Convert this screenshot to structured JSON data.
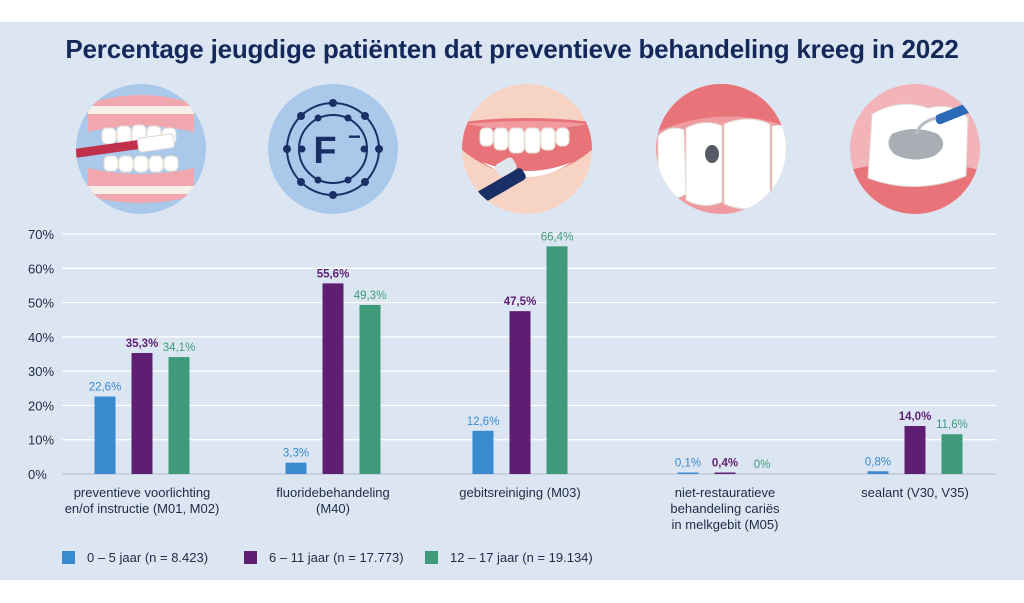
{
  "title": "Percentage jeugdige patiënten dat preventieve behandeling kreeg in 2022",
  "icons": [
    "toothbrush-teeth-icon",
    "fluoride-atom-icon",
    "teeth-cleaning-icon",
    "caries-tooth-icon",
    "sealant-tooth-icon"
  ],
  "colors": {
    "background": "#dce6f3",
    "title": "#14285a",
    "blue": "#3a8ad0",
    "purple": "#5e1f72",
    "green": "#3f9a7a"
  },
  "chart_data": {
    "type": "bar",
    "title": "Percentage jeugdige patiënten dat preventieve behandeling kreeg in 2022",
    "ylim": [
      0,
      70
    ],
    "yticks": [
      "0%",
      "10%",
      "20%",
      "30%",
      "40%",
      "50%",
      "60%",
      "70%"
    ],
    "grid": true,
    "legend_position": "bottom",
    "categories": [
      "preventieve voorlichting\nen/of instructie (M01, M02)",
      "fluoridebehandeling\n(M40)",
      "gebitsreiniging (M03)",
      "niet-restauratieve\nbehandeling cariës\nin melkgebit (M05)",
      "sealant (V30, V35)"
    ],
    "series": [
      {
        "name": "0 – 5 jaar (n = 8.423)",
        "color": "#3a8ad0",
        "values": [
          22.6,
          3.3,
          12.6,
          0.1,
          0.8
        ],
        "labels": [
          "22,6%",
          "3,3%",
          "12,6%",
          "0,1%",
          "0,8%"
        ]
      },
      {
        "name": "6 – 11 jaar (n = 17.773)",
        "color": "#5e1f72",
        "values": [
          35.3,
          55.6,
          47.5,
          0.4,
          14.0
        ],
        "labels": [
          "35,3%",
          "55,6%",
          "47,5%",
          "0,4%",
          "14,0%"
        ]
      },
      {
        "name": "12 – 17 jaar (n = 19.134)",
        "color": "#3f9a7a",
        "values": [
          34.1,
          49.3,
          66.4,
          0,
          11.6
        ],
        "labels": [
          "34,1%",
          "49,3%",
          "66,4%",
          "0%",
          "11,6%"
        ]
      }
    ]
  }
}
